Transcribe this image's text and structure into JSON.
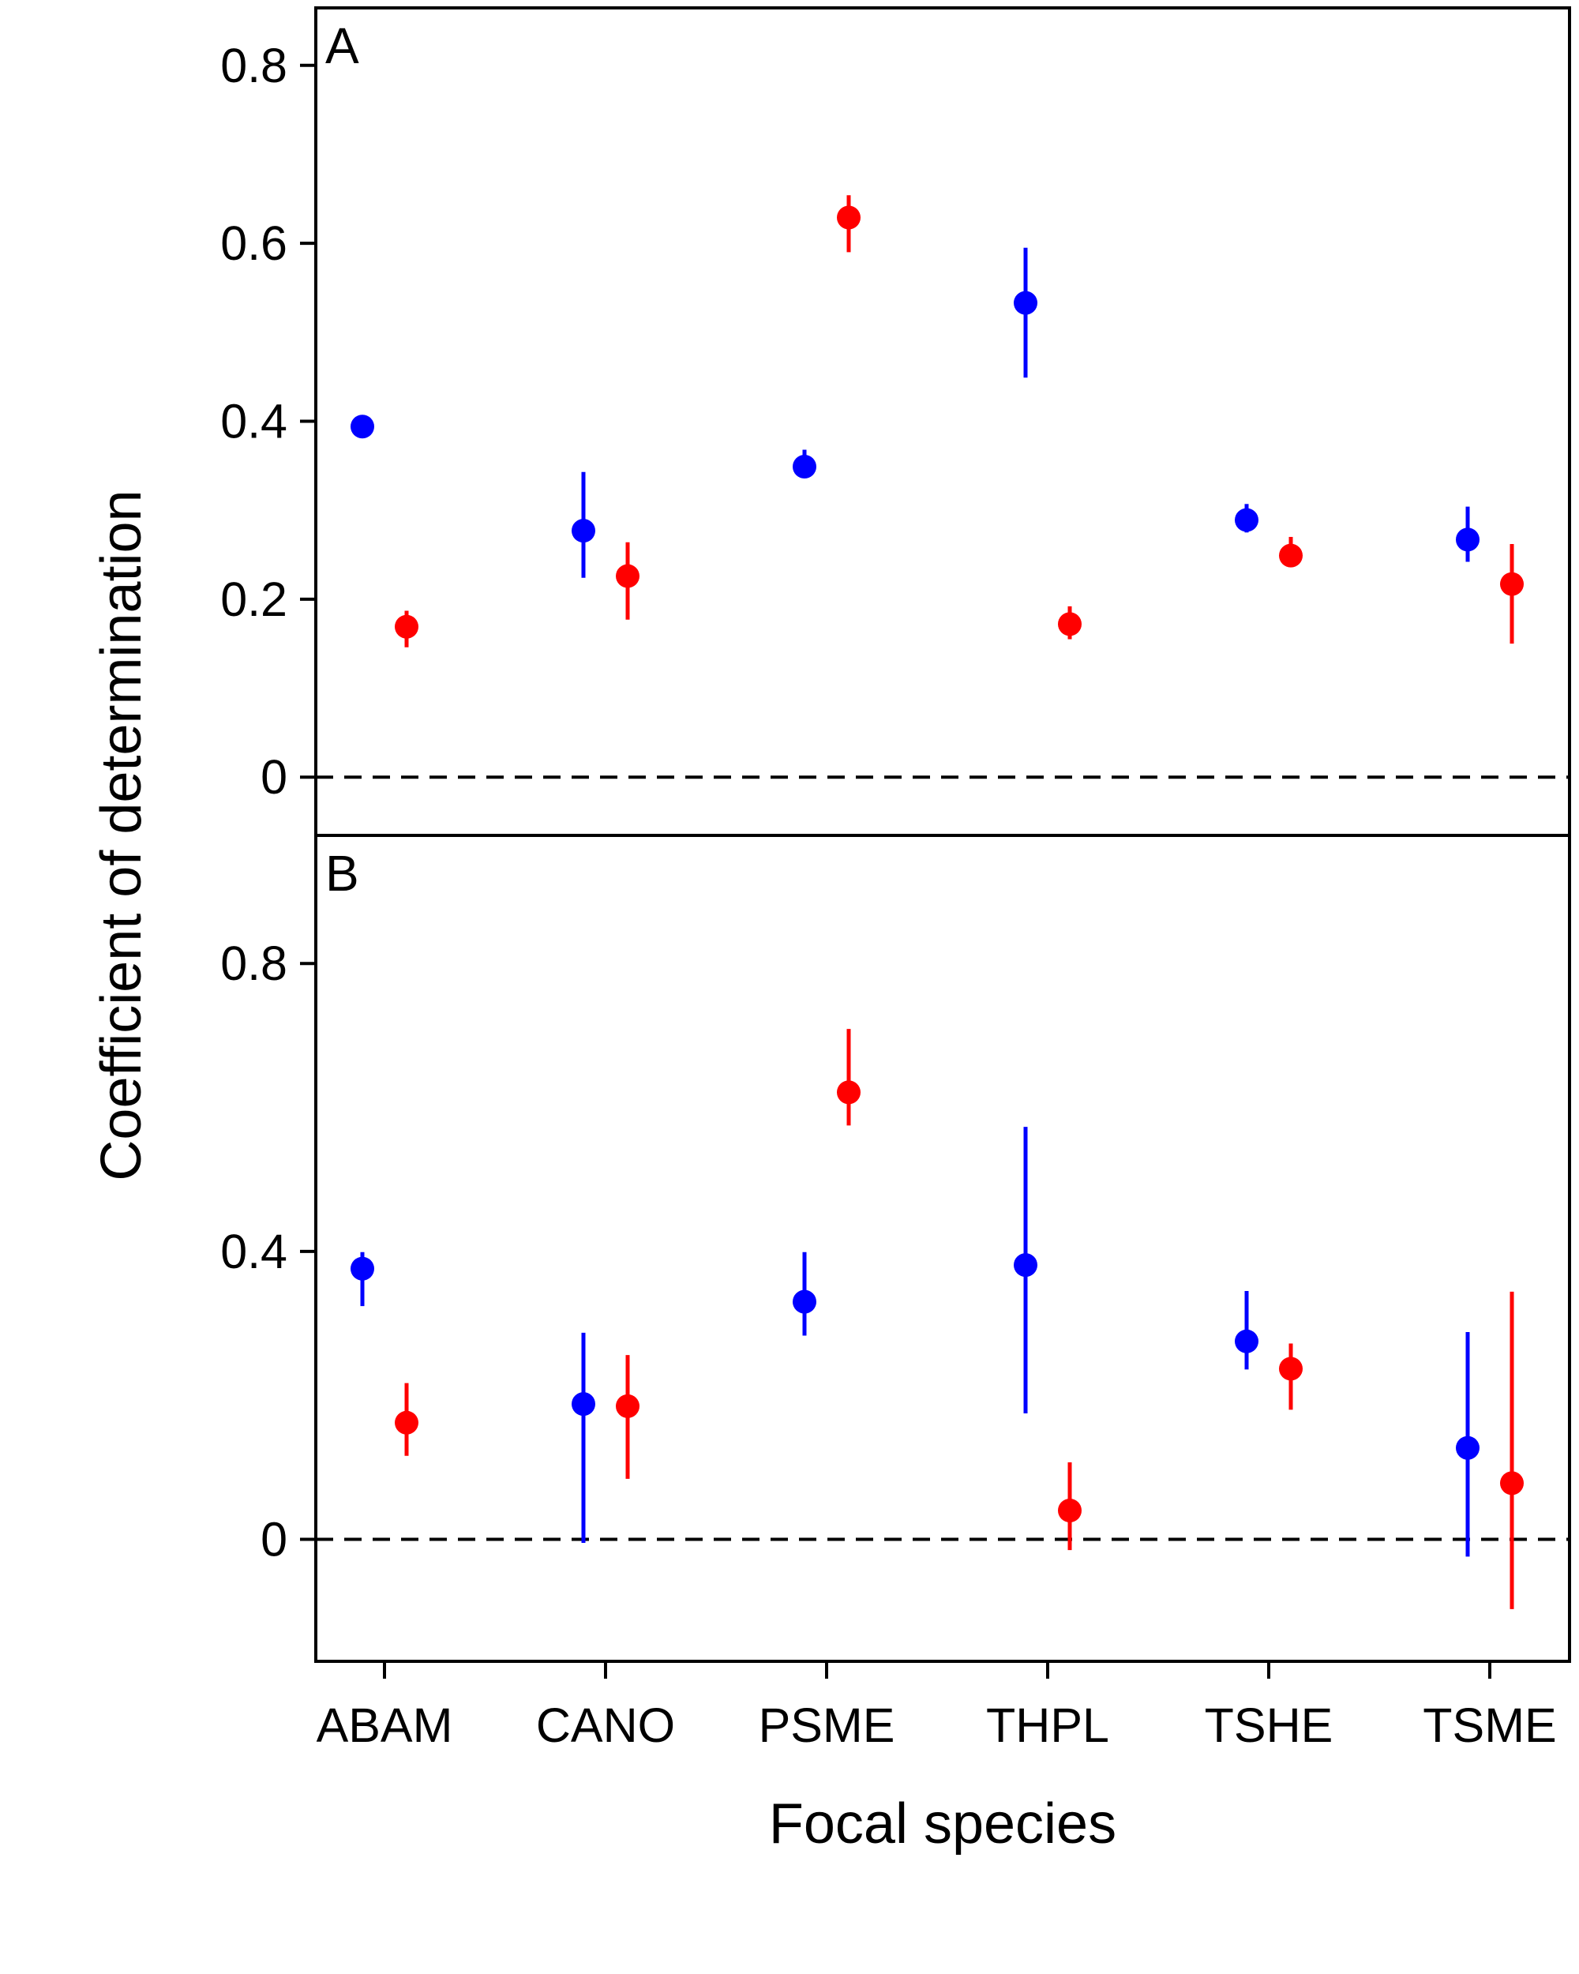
{
  "chart_data": {
    "type": "scatter",
    "ylabel": "Coefficient of determination",
    "xlabel": "Focal species",
    "categories": [
      "ABAM",
      "CANO",
      "PSME",
      "THPL",
      "TSHE",
      "TSME"
    ],
    "colors": {
      "series_1": "#0000ff",
      "series_2": "#ff0000"
    },
    "reference_line": {
      "y": 0,
      "style": "dashed"
    },
    "panels": [
      {
        "label": "A",
        "ylim": [
          -0.03,
          0.83
        ],
        "yticks": [
          0,
          0.2,
          0.4,
          0.6,
          0.8
        ],
        "ytick_labels": [
          "0",
          "0.2",
          "0.4",
          "0.6",
          "0.8"
        ],
        "series": [
          {
            "color": "#0000ff",
            "offset": -0.1,
            "values": [
              0.394,
              0.277,
              0.349,
              0.533,
              0.289,
              0.267
            ],
            "lower": [
              0.389,
              0.224,
              0.338,
              0.449,
              0.275,
              0.242
            ],
            "upper": [
              0.403,
              0.343,
              0.368,
              0.595,
              0.307,
              0.304
            ]
          },
          {
            "color": "#ff0000",
            "offset": 0.1,
            "values": [
              0.169,
              0.226,
              0.629,
              0.172,
              0.249,
              0.217
            ],
            "lower": [
              0.146,
              0.177,
              0.59,
              0.155,
              0.237,
              0.15
            ],
            "upper": [
              0.187,
              0.264,
              0.654,
              0.192,
              0.27,
              0.262
            ]
          }
        ]
      },
      {
        "label": "B",
        "ylim": [
          -0.13,
          0.99
        ],
        "yticks": [
          0,
          0.4,
          0.8
        ],
        "ytick_labels": [
          "0",
          "0.4",
          "0.8"
        ],
        "series": [
          {
            "color": "#0000ff",
            "offset": -0.1,
            "values": [
              0.376,
              0.188,
              0.33,
              0.381,
              0.275,
              0.127
            ],
            "lower": [
              0.324,
              -0.005,
              0.283,
              0.175,
              0.236,
              -0.024
            ],
            "upper": [
              0.399,
              0.287,
              0.399,
              0.573,
              0.345,
              0.288
            ]
          },
          {
            "color": "#ff0000",
            "offset": 0.1,
            "values": [
              0.162,
              0.185,
              0.621,
              0.04,
              0.237,
              0.078
            ],
            "lower": [
              0.116,
              0.084,
              0.575,
              -0.015,
              0.18,
              -0.097
            ],
            "upper": [
              0.217,
              0.256,
              0.709,
              0.107,
              0.272,
              0.344
            ]
          }
        ]
      }
    ]
  }
}
